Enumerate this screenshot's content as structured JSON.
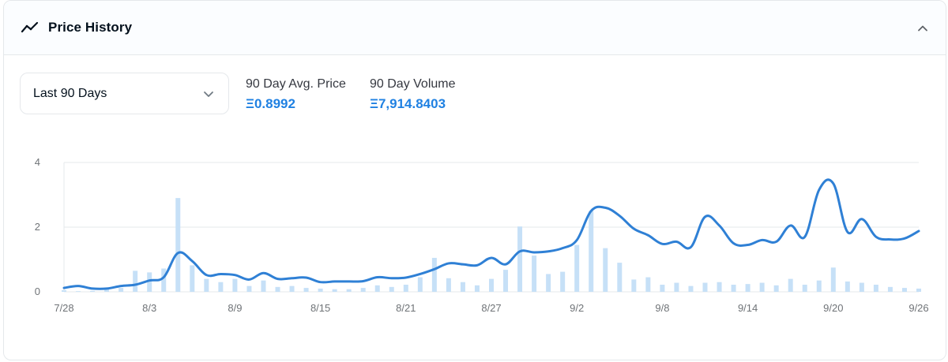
{
  "header": {
    "title": "Price History",
    "icon": "trending-line-icon",
    "collapse_icon": "chevron-up-icon"
  },
  "filter": {
    "selected": "Last 90 Days",
    "icon": "chevron-down-icon"
  },
  "stats": [
    {
      "label": "90 Day Avg. Price",
      "value": "Ξ0.8992"
    },
    {
      "label": "90 Day Volume",
      "value": "Ξ7,914.8403"
    }
  ],
  "colors": {
    "accent": "#2081e2",
    "line": "#2f80d5",
    "bars": "#c6e0f7",
    "grid": "#e5e8eb"
  },
  "chart_data": {
    "type": "line",
    "title": "",
    "xlabel": "",
    "ylabel": "",
    "ylim": [
      0,
      4
    ],
    "yticks": [
      "0",
      "2",
      "4"
    ],
    "xticks": [
      "7/28",
      "8/3",
      "8/9",
      "8/15",
      "8/21",
      "8/27",
      "9/2",
      "9/8",
      "9/14",
      "9/20",
      "9/26"
    ],
    "x": [
      "7/28",
      "7/29",
      "7/30",
      "7/31",
      "8/1",
      "8/2",
      "8/3",
      "8/4",
      "8/5",
      "8/6",
      "8/7",
      "8/8",
      "8/9",
      "8/10",
      "8/11",
      "8/12",
      "8/13",
      "8/14",
      "8/15",
      "8/16",
      "8/17",
      "8/18",
      "8/19",
      "8/20",
      "8/21",
      "8/22",
      "8/23",
      "8/24",
      "8/25",
      "8/26",
      "8/27",
      "8/28",
      "8/29",
      "8/30",
      "8/31",
      "9/1",
      "9/2",
      "9/3",
      "9/4",
      "9/5",
      "9/6",
      "9/7",
      "9/8",
      "9/9",
      "9/10",
      "9/11",
      "9/12",
      "9/13",
      "9/14",
      "9/15",
      "9/16",
      "9/17",
      "9/18",
      "9/19",
      "9/20",
      "9/21",
      "9/22",
      "9/23",
      "9/24",
      "9/25",
      "9/26"
    ],
    "series": [
      {
        "type": "line",
        "values": [
          0.12,
          0.18,
          0.1,
          0.1,
          0.18,
          0.22,
          0.35,
          0.45,
          1.2,
          0.95,
          0.52,
          0.55,
          0.52,
          0.38,
          0.58,
          0.4,
          0.42,
          0.44,
          0.3,
          0.32,
          0.32,
          0.33,
          0.45,
          0.42,
          0.44,
          0.55,
          0.7,
          0.88,
          0.85,
          0.82,
          1.05,
          0.85,
          1.25,
          1.22,
          1.25,
          1.35,
          1.6,
          2.5,
          2.6,
          2.35,
          1.95,
          1.75,
          1.48,
          1.55,
          1.38,
          2.32,
          2.05,
          1.5,
          1.45,
          1.6,
          1.55,
          2.05,
          1.7,
          3.15,
          3.35,
          1.85,
          2.25,
          1.7,
          1.62,
          1.65,
          1.88
        ]
      },
      {
        "type": "bar",
        "values": [
          0.05,
          0.02,
          0.03,
          0.08,
          0.12,
          0.65,
          0.6,
          0.72,
          2.9,
          0.82,
          0.4,
          0.3,
          0.4,
          0.18,
          0.35,
          0.15,
          0.18,
          0.12,
          0.1,
          0.08,
          0.08,
          0.12,
          0.2,
          0.15,
          0.22,
          0.45,
          1.05,
          0.42,
          0.3,
          0.2,
          0.4,
          0.68,
          2.02,
          1.12,
          0.55,
          0.62,
          1.45,
          2.5,
          1.35,
          0.9,
          0.38,
          0.45,
          0.22,
          0.28,
          0.18,
          0.28,
          0.3,
          0.22,
          0.24,
          0.28,
          0.2,
          0.4,
          0.22,
          0.35,
          0.75,
          0.32,
          0.28,
          0.22,
          0.15,
          0.12,
          0.1
        ]
      }
    ],
    "grid": true,
    "legend": "none"
  }
}
